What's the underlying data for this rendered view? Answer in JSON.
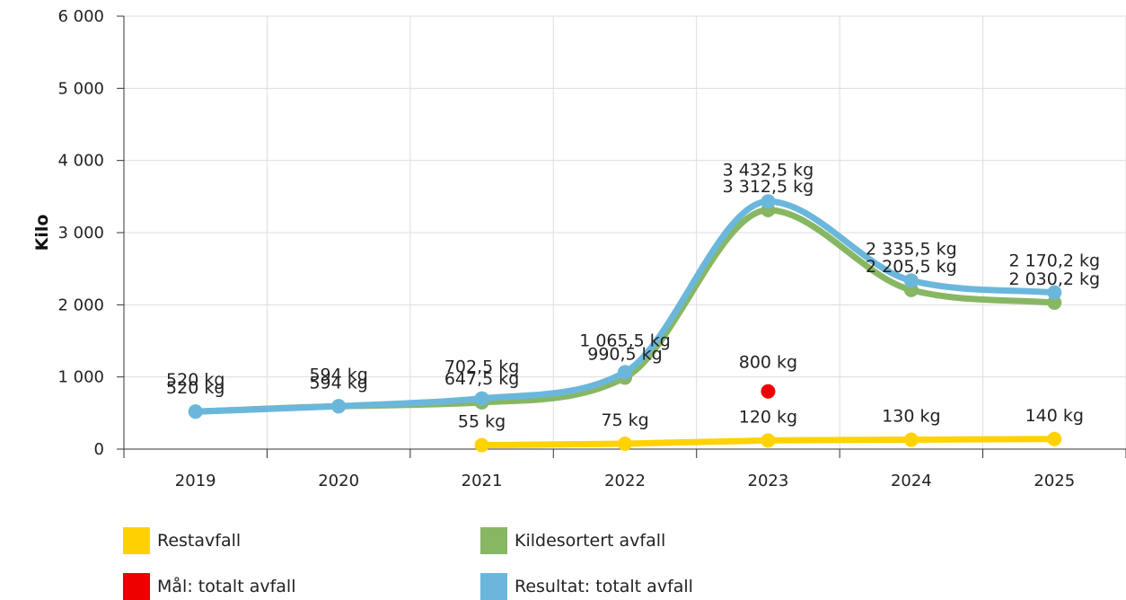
{
  "chart_data": {
    "type": "line",
    "ylabel": "Kilo",
    "ylim": [
      0,
      6000
    ],
    "yticks": [
      "0",
      "1 000",
      "2 000",
      "3 000",
      "4 000",
      "5 000",
      "6 000"
    ],
    "ytick_values": [
      0,
      1000,
      2000,
      3000,
      4000,
      5000,
      6000
    ],
    "categories": [
      "2019",
      "2020",
      "2021",
      "2022",
      "2023",
      "2024",
      "2025"
    ],
    "grid": true,
    "legend_position": "bottom",
    "series": [
      {
        "name": "Restavfall",
        "color": "#FFD200",
        "values": [
          null,
          null,
          55,
          75,
          120,
          130,
          140
        ],
        "labels": [
          null,
          null,
          "55 kg",
          "75 kg",
          "120 kg",
          "130 kg",
          "140 kg"
        ]
      },
      {
        "name": "Kildesortert avfall",
        "color": "#88B764",
        "values": [
          520,
          594,
          647.5,
          990.5,
          3312.5,
          2205.5,
          2030.2
        ],
        "labels": [
          "520 kg",
          "594 kg",
          "647,5 kg",
          "990,5 kg",
          "3 312,5 kg",
          "2 205,5 kg",
          "2 030,2 kg"
        ]
      },
      {
        "name": "Mål: totalt avfall",
        "color": "#EE0000",
        "values": [
          null,
          null,
          null,
          null,
          800,
          null,
          null
        ],
        "labels": [
          null,
          null,
          null,
          null,
          "800 kg",
          null,
          null
        ]
      },
      {
        "name": "Resultat: totalt avfall",
        "color": "#6BB7DC",
        "values": [
          520,
          594,
          702.5,
          1065.5,
          3432.5,
          2335.5,
          2170.2
        ],
        "labels": [
          "520 kg",
          "594 kg",
          "702,5 kg",
          "1 065,5 kg",
          "3 432,5 kg",
          "2 335,5 kg",
          "2 170,2 kg"
        ]
      }
    ]
  }
}
